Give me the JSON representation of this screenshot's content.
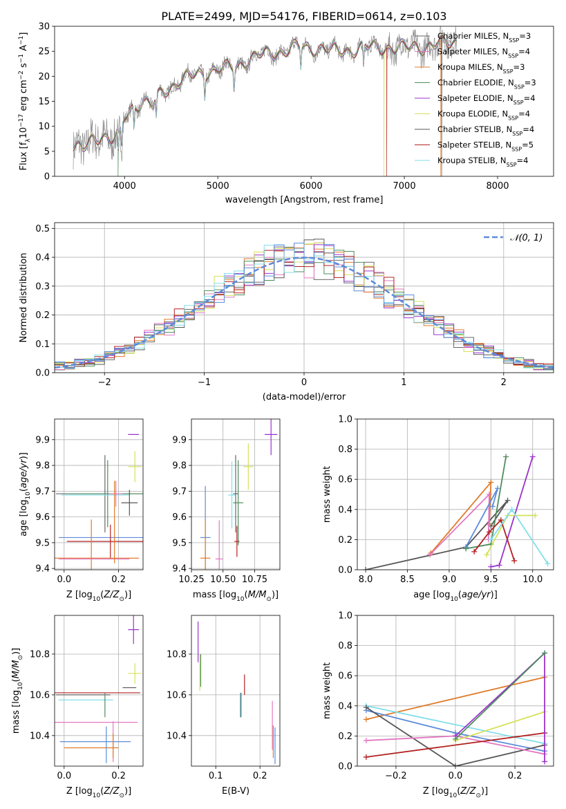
{
  "figure_title": "PLATE=2499, MJD=54176, FIBERID=0614, z=0.103",
  "colors": {
    "Chabrier MILES": "#666666",
    "Salpeter MILES": "#e377c2",
    "Kroupa MILES": "#e07b28",
    "Chabrier ELODIE": "#4e8c5c",
    "Salpeter ELODIE": "#9932cc",
    "Kroupa ELODIE": "#d4e157",
    "Chabrier STELIB": "#555555",
    "Salpeter STELIB": "#b22222",
    "Kroupa STELIB": "#80deea",
    "extra_blue": "#5b8bd9",
    "data": "#808080"
  },
  "chart_data": [
    {
      "type": "line",
      "id": "spectrum",
      "xlabel": "wavelength [Angstrom, rest frame]",
      "ylabel": "Flux [f_λ10^-17 erg cm^-2 s^-1 A^-1]",
      "xlim": [
        3250,
        8600
      ],
      "ylim": [
        0,
        30
      ],
      "xticks": [
        4000,
        5000,
        6000,
        7000,
        8000
      ],
      "yticks": [
        0,
        5,
        10,
        15,
        20,
        25,
        30
      ],
      "grid": false,
      "legend_position": "top-right",
      "legend": [
        {
          "name": "Chabrier MILES",
          "nssp": "3"
        },
        {
          "name": "Salpeter MILES",
          "nssp": "4"
        },
        {
          "name": "Kroupa MILES",
          "nssp": "3"
        },
        {
          "name": "Chabrier ELODIE",
          "nssp": "3"
        },
        {
          "name": "Salpeter ELODIE",
          "nssp": "4"
        },
        {
          "name": "Kroupa ELODIE",
          "nssp": "4"
        },
        {
          "name": "Chabrier STELIB",
          "nssp": "4"
        },
        {
          "name": "Salpeter STELIB",
          "nssp": "5"
        },
        {
          "name": "Kroupa STELIB",
          "nssp": "4"
        }
      ],
      "continuum": {
        "x": [
          3450,
          3550,
          3650,
          3750,
          3850,
          3950,
          4000,
          4100,
          4200,
          4300,
          4400,
          4500,
          4700,
          4900,
          5100,
          5300,
          5500,
          5700,
          5900,
          6100,
          6300,
          6500,
          6700,
          6900,
          7100,
          7300,
          7500
        ],
        "y": [
          6,
          5,
          7.5,
          8.5,
          7,
          8,
          12,
          14,
          15,
          14,
          17,
          18,
          20,
          21,
          21.5,
          23,
          24.5,
          25,
          26,
          25.5,
          25,
          25.5,
          26,
          25.5,
          26,
          26,
          27
        ]
      },
      "cutoffs": [
        {
          "name": "Kroupa ELODIE",
          "x": 6780
        },
        {
          "name": "Chabrier STELIB",
          "x": 7400
        },
        {
          "name": "Salpeter STELIB",
          "x": 6810
        },
        {
          "name": "Kroupa MILES",
          "x": 7390
        },
        {
          "name": "Chabrier ELODIE",
          "x": 3930
        }
      ]
    },
    {
      "type": "line",
      "id": "residuals",
      "xlabel": "(data-model)/error",
      "ylabel": "Normed distribution",
      "xlim": [
        -2.5,
        2.5
      ],
      "ylim": [
        0,
        0.52
      ],
      "xticks": [
        -2,
        -1,
        0,
        1,
        2
      ],
      "yticks": [
        0.0,
        0.1,
        0.2,
        0.3,
        0.4,
        0.5
      ],
      "grid": true,
      "legend_position": "top-right",
      "gaussian_label": "𝒩(0, 1)",
      "bin_width": 0.1,
      "bin_start": -2.5,
      "gaussian": {
        "mean": 0,
        "sigma": 1
      }
    },
    {
      "type": "scatter",
      "id": "age_vs_Z",
      "xlabel": "Z [log10(Z/Z⊙)]",
      "ylabel": "age [log10(age/yr)]",
      "xlim": [
        -0.035,
        0.29
      ],
      "ylim": [
        9.395,
        9.98
      ],
      "xticks": [
        0.0,
        0.2
      ],
      "yticks": [
        9.4,
        9.5,
        9.6,
        9.7,
        9.8,
        9.9
      ],
      "grid": true,
      "points": [
        {
          "series": "Salpeter ELODIE",
          "x": 0.255,
          "xerr": 0.02,
          "y": 9.92,
          "yerr": 0
        },
        {
          "series": "Kroupa ELODIE",
          "x": 0.26,
          "xerr": 0.025,
          "y": 9.795,
          "yerr": 0.06
        },
        {
          "series": "Chabrier MILES",
          "x": 0.15,
          "xerr": 0.18,
          "y": 9.69,
          "yerr": 0.15
        },
        {
          "series": "Chabrier ELODIE",
          "x": 0.16,
          "xerr": 0.15,
          "y": 9.69,
          "yerr": 0.13
        },
        {
          "series": "Kroupa STELIB",
          "x": 0.115,
          "xerr": 0.125,
          "y": 9.685,
          "yerr": 0
        },
        {
          "series": "Salpeter MILES",
          "x": 0.19,
          "xerr": 0.025,
          "y": 9.69,
          "yerr": 0.05
        },
        {
          "series": "Chabrier STELIB",
          "x": 0.24,
          "xerr": 0.03,
          "y": 9.655,
          "yerr": 0.05
        },
        {
          "series": "extra_blue",
          "x": 0.15,
          "xerr": 0.17,
          "y": 9.52,
          "yerr": 0
        },
        {
          "series": "Salpeter STELIB",
          "x": 0.17,
          "xerr": 0.16,
          "y": 9.505,
          "yerr": 0.065
        },
        {
          "series": "Kroupa MILES",
          "x": 0.1,
          "xerr": 0.175,
          "y": 9.44,
          "yerr": 0.15
        },
        {
          "series": "Salpeter MILES",
          "x": 0.11,
          "xerr": 0.13,
          "y": 9.437,
          "yerr": 0
        },
        {
          "series": "Kroupa MILES",
          "x": 0.185,
          "xerr": 0,
          "y": 9.58,
          "yerr": 0.16
        }
      ]
    },
    {
      "type": "scatter",
      "id": "age_vs_mass",
      "xlabel": "mass [log10(M/M⊙)]",
      "ylabel": "",
      "xlim": [
        10.25,
        10.95
      ],
      "ylim": [
        9.395,
        9.98
      ],
      "xticks": [
        10.25,
        10.5,
        10.75
      ],
      "yticks": [
        9.4,
        9.5,
        9.6,
        9.7,
        9.8,
        9.9
      ],
      "grid": true,
      "points": [
        {
          "series": "Salpeter ELODIE",
          "x": 10.88,
          "xerr": 0.05,
          "y": 9.92,
          "yerr": 0.08
        },
        {
          "series": "Kroupa ELODIE",
          "x": 10.7,
          "xerr": 0.04,
          "y": 9.795,
          "yerr": 0.09
        },
        {
          "series": "Chabrier ELODIE",
          "x": 10.62,
          "xerr": 0.04,
          "y": 9.655,
          "yerr": 0.165
        },
        {
          "series": "extra_blue",
          "x": 10.36,
          "xerr": 0.04,
          "y": 9.52,
          "yerr": 0.2
        },
        {
          "series": "Kroupa STELIB",
          "x": 10.57,
          "xerr": 0.03,
          "y": 9.685,
          "yerr": 0.13
        },
        {
          "series": "Chabrier MILES",
          "x": 10.6,
          "xerr": 0.02,
          "y": 9.69,
          "yerr": 0.15
        },
        {
          "series": "Salpeter STELIB",
          "x": 10.61,
          "xerr": 0.02,
          "y": 9.505,
          "yerr": 0.06
        },
        {
          "series": "Kroupa MILES",
          "x": 10.36,
          "xerr": 0.04,
          "y": 9.44,
          "yerr": 0.15
        },
        {
          "series": "Salpeter MILES",
          "x": 10.47,
          "xerr": 0.03,
          "y": 9.437,
          "yerr": 0.15
        }
      ]
    },
    {
      "type": "line",
      "id": "weight_vs_age",
      "xlabel": "age [log10(age/yr)]",
      "ylabel": "mass weight",
      "xlim": [
        7.9,
        10.25
      ],
      "ylim": [
        0,
        1
      ],
      "xticks": [
        8.0,
        8.5,
        9.0,
        9.5,
        10.0
      ],
      "yticks": [
        0.0,
        0.2,
        0.4,
        0.6,
        0.8,
        1.0
      ],
      "grid": true,
      "series": [
        {
          "name": "Chabrier STELIB",
          "x": [
            8.0,
            9.2,
            9.7,
            9.5
          ],
          "y": [
            0.0,
            0.15,
            0.46,
            0.29
          ]
        },
        {
          "name": "Kroupa MILES",
          "x": [
            8.78,
            9.5,
            9.48
          ],
          "y": [
            0.11,
            0.58,
            0.3
          ]
        },
        {
          "name": "Salpeter MILES",
          "x": [
            8.77,
            9.48,
            9.47
          ],
          "y": [
            0.1,
            0.5,
            0.2
          ]
        },
        {
          "name": "extra_blue",
          "x": [
            9.2,
            9.58,
            9.52
          ],
          "y": [
            0.15,
            0.54,
            0.42
          ]
        },
        {
          "name": "Chabrier ELODIE",
          "x": [
            9.2,
            9.5,
            9.68
          ],
          "y": [
            0.14,
            0.17,
            0.75
          ]
        },
        {
          "name": "Salpeter ELODIE",
          "x": [
            9.5,
            9.6,
            10.0
          ],
          "y": [
            0.02,
            0.03,
            0.75
          ]
        },
        {
          "name": "Kroupa ELODIE",
          "x": [
            9.45,
            9.7,
            10.03
          ],
          "y": [
            0.1,
            0.36,
            0.36
          ]
        },
        {
          "name": "Salpeter STELIB",
          "x": [
            9.3,
            9.48,
            9.62,
            9.78
          ],
          "y": [
            0.12,
            0.25,
            0.33,
            0.06
          ]
        },
        {
          "name": "Kroupa STELIB",
          "x": [
            9.5,
            9.75,
            10.18
          ],
          "y": [
            0.2,
            0.4,
            0.04
          ]
        }
      ]
    },
    {
      "type": "scatter",
      "id": "mass_vs_Z",
      "xlabel": "Z [log10(Z/Z⊙)]",
      "ylabel": "mass [log10(M/M⊙)]",
      "xlim": [
        -0.035,
        0.29
      ],
      "ylim": [
        10.25,
        10.99
      ],
      "xticks": [
        0.0,
        0.2
      ],
      "yticks": [
        10.4,
        10.6,
        10.8
      ],
      "grid": true,
      "points": [
        {
          "series": "Salpeter ELODIE",
          "x": 0.255,
          "xerr": 0.02,
          "y": 10.92,
          "yerr": 0.07
        },
        {
          "series": "Kroupa ELODIE",
          "x": 0.26,
          "xerr": 0.025,
          "y": 10.705,
          "yerr": 0.05
        },
        {
          "series": "Chabrier STELIB",
          "x": 0.24,
          "xerr": 0.025,
          "y": 10.635,
          "yerr": 0
        },
        {
          "series": "Salpeter STELIB",
          "x": 0.1,
          "xerr": 0.18,
          "y": 10.61,
          "yerr": 0
        },
        {
          "series": "Chabrier MILES",
          "x": 0.07,
          "xerr": 0.1,
          "y": 10.6,
          "yerr": 0
        },
        {
          "series": "Kroupa STELIB",
          "x": 0.08,
          "xerr": 0.1,
          "y": 10.575,
          "yerr": 0
        },
        {
          "series": "Chabrier ELODIE",
          "x": 0.15,
          "xerr": 0,
          "y": 10.55,
          "yerr": 0.06
        },
        {
          "series": "Salpeter MILES",
          "x": 0.1,
          "xerr": 0.17,
          "y": 10.465,
          "yerr": 0
        },
        {
          "series": "extra_blue",
          "x": 0.115,
          "xerr": 0.13,
          "y": 10.37,
          "yerr": 0
        },
        {
          "series": "Kroupa MILES",
          "x": 0.1,
          "xerr": 0.1,
          "y": 10.34,
          "yerr": 0
        },
        {
          "series": "Salpeter MILES",
          "x": 0.18,
          "xerr": 0,
          "y": 10.37,
          "yerr": 0.1
        },
        {
          "series": "extra_blue",
          "x": 0.155,
          "xerr": 0,
          "y": 10.355,
          "yerr": 0.09
        },
        {
          "series": "Kroupa MILES",
          "x": 0.18,
          "xerr": 0,
          "y": 10.35,
          "yerr": 0.06
        }
      ]
    },
    {
      "type": "scatter",
      "id": "mass_vs_EBV",
      "xlabel": "E(B-V)",
      "ylabel": "",
      "xlim": [
        0.045,
        0.245
      ],
      "ylim": [
        10.25,
        10.99
      ],
      "xticks": [
        0.1,
        0.2
      ],
      "yticks": [
        10.4,
        10.6,
        10.8
      ],
      "grid": true,
      "points": [
        {
          "series": "Salpeter ELODIE",
          "x": 0.06,
          "xerr": 0,
          "y": 10.86,
          "yerr": 0.1
        },
        {
          "series": "Kroupa ELODIE",
          "x": 0.064,
          "xerr": 0,
          "y": 10.71,
          "yerr": 0.09
        },
        {
          "series": "Chabrier ELODIE",
          "x": 0.066,
          "xerr": 0,
          "y": 10.72,
          "yerr": 0.08
        },
        {
          "series": "Salpeter STELIB",
          "x": 0.165,
          "xerr": 0,
          "y": 10.65,
          "yerr": 0.05
        },
        {
          "series": "Kroupa STELIB",
          "x": 0.155,
          "xerr": 0,
          "y": 10.55,
          "yerr": 0.06
        },
        {
          "series": "Chabrier STELIB",
          "x": 0.157,
          "xerr": 0,
          "y": 10.55,
          "yerr": 0.06
        },
        {
          "series": "Salpeter MILES",
          "x": 0.228,
          "xerr": 0,
          "y": 10.45,
          "yerr": 0.12
        },
        {
          "series": "Kroupa MILES",
          "x": 0.23,
          "xerr": 0,
          "y": 10.37,
          "yerr": 0.08
        },
        {
          "series": "extra_blue",
          "x": 0.234,
          "xerr": 0,
          "y": 10.35,
          "yerr": 0.09
        }
      ]
    },
    {
      "type": "line",
      "id": "weight_vs_Z",
      "xlabel": "Z [log10(Z/Z⊙)]",
      "ylabel": "mass weight",
      "xlim": [
        -0.33,
        0.33
      ],
      "ylim": [
        0,
        1
      ],
      "xticks": [
        -0.2,
        0.0,
        0.2
      ],
      "yticks": [
        0.0,
        0.2,
        0.4,
        0.6,
        0.8,
        1.0
      ],
      "grid": true,
      "series": [
        {
          "name": "Kroupa MILES",
          "x": [
            -0.3,
            0.3
          ],
          "y": [
            0.31,
            0.59
          ]
        },
        {
          "name": "Kroupa STELIB",
          "x": [
            -0.3,
            0.3
          ],
          "y": [
            0.4,
            0.15
          ]
        },
        {
          "name": "extra_blue",
          "x": [
            -0.3,
            0.0,
            0.3
          ],
          "y": [
            0.37,
            0.22,
            0.1
          ]
        },
        {
          "name": "Chabrier STELIB",
          "x": [
            -0.3,
            0.0,
            0.3
          ],
          "y": [
            0.39,
            0.0,
            0.14
          ]
        },
        {
          "name": "Salpeter MILES",
          "x": [
            -0.3,
            0.0,
            0.3
          ],
          "y": [
            0.17,
            0.2,
            0.08
          ]
        },
        {
          "name": "Kroupa ELODIE",
          "x": [
            0.0,
            0.3
          ],
          "y": [
            0.17,
            0.36
          ]
        },
        {
          "name": "Salpeter STELIB",
          "x": [
            -0.3,
            0.3
          ],
          "y": [
            0.06,
            0.22
          ]
        },
        {
          "name": "Salpeter ELODIE",
          "x": [
            0.0,
            0.3,
            0.3
          ],
          "y": [
            0.2,
            0.75,
            0.03
          ]
        },
        {
          "name": "Chabrier ELODIE",
          "x": [
            0.0,
            0.3
          ],
          "y": [
            0.18,
            0.75
          ]
        }
      ]
    }
  ]
}
